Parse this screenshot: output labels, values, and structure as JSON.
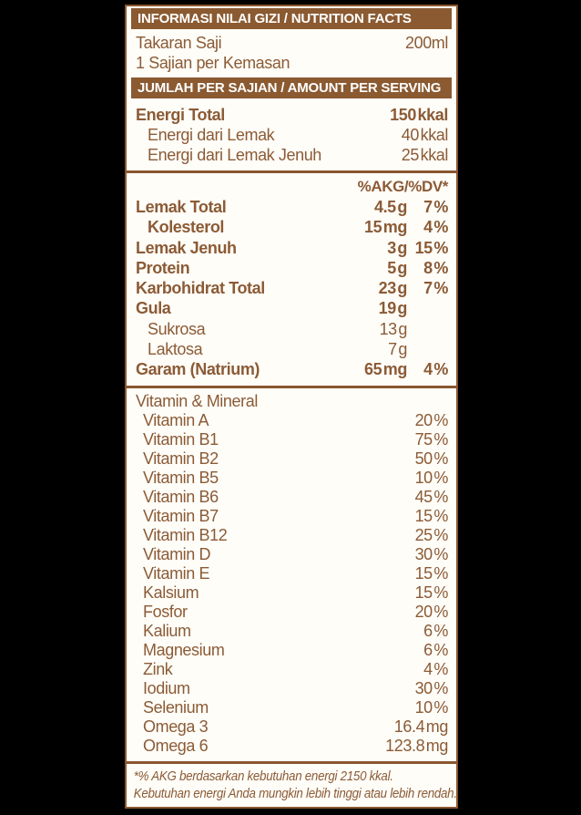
{
  "colors": {
    "background": "#000000",
    "label_bg": "#fffdf8",
    "bar_brown": "#8b5a31",
    "text_brown": "#8b5b36",
    "bar_text": "#ffffff"
  },
  "header": {
    "title": "INFORMASI NILAI GIZI / NUTRITION FACTS"
  },
  "serving": {
    "size_label": "Takaran Saji",
    "size_value": "200ml",
    "per_pack": "1 Sajian per Kemasan"
  },
  "amount_bar": {
    "title": "JUMLAH PER SAJIAN / AMOUNT PER SERVING"
  },
  "energy": {
    "rows": [
      {
        "label": "Energi Total",
        "value": "150 kkal"
      },
      {
        "label": "Energi dari Lemak",
        "value": "40 kkal"
      },
      {
        "label": "Energi dari Lemak Jenuh",
        "value": "25 kkal"
      }
    ]
  },
  "dv_header": "%AKG/%DV*",
  "nutrients": {
    "rows": [
      {
        "name": "Lemak Total",
        "amount": "4.5 g",
        "dv": "7 %"
      },
      {
        "name": "Kolesterol",
        "amount": "15 mg",
        "dv": "4 %"
      },
      {
        "name": "Lemak Jenuh",
        "amount": "3 g",
        "dv": "15 %"
      },
      {
        "name": "Protein",
        "amount": "5 g",
        "dv": "8 %"
      },
      {
        "name": "Karbohidrat Total",
        "amount": "23 g",
        "dv": "7 %"
      },
      {
        "name": "Gula",
        "amount": "19 g",
        "dv": ""
      },
      {
        "name": "Sukrosa",
        "amount": "13 g",
        "dv": ""
      },
      {
        "name": "Laktosa",
        "amount": "7 g",
        "dv": ""
      },
      {
        "name": "Garam (Natrium)",
        "amount": "65 mg",
        "dv": "4 %"
      }
    ]
  },
  "vitamins": {
    "title": "Vitamin & Mineral",
    "rows": [
      {
        "name": "Vitamin A",
        "value": "20 %"
      },
      {
        "name": "Vitamin B1",
        "value": "75 %"
      },
      {
        "name": "Vitamin B2",
        "value": "50 %"
      },
      {
        "name": "Vitamin B5",
        "value": "10 %"
      },
      {
        "name": "Vitamin B6",
        "value": "45 %"
      },
      {
        "name": "Vitamin B7",
        "value": "15 %"
      },
      {
        "name": "Vitamin B12",
        "value": "25 %"
      },
      {
        "name": "Vitamin D",
        "value": "30 %"
      },
      {
        "name": "Vitamin E",
        "value": "15 %"
      },
      {
        "name": "Kalsium",
        "value": "15 %"
      },
      {
        "name": "Fosfor",
        "value": "20 %"
      },
      {
        "name": "Kalium",
        "value": "6 %"
      },
      {
        "name": "Magnesium",
        "value": "6 %"
      },
      {
        "name": "Zink",
        "value": "4 %"
      },
      {
        "name": "Iodium",
        "value": "30 %"
      },
      {
        "name": "Selenium",
        "value": "10 %"
      },
      {
        "name": "Omega 3",
        "value": "16.4 mg"
      },
      {
        "name": "Omega 6",
        "value": "123.8 mg"
      }
    ]
  },
  "footnote": {
    "line1": "*% AKG berdasarkan kebutuhan energi 2150 kkal.",
    "line2": "Kebutuhan energi Anda mungkin lebih tinggi atau lebih rendah."
  }
}
